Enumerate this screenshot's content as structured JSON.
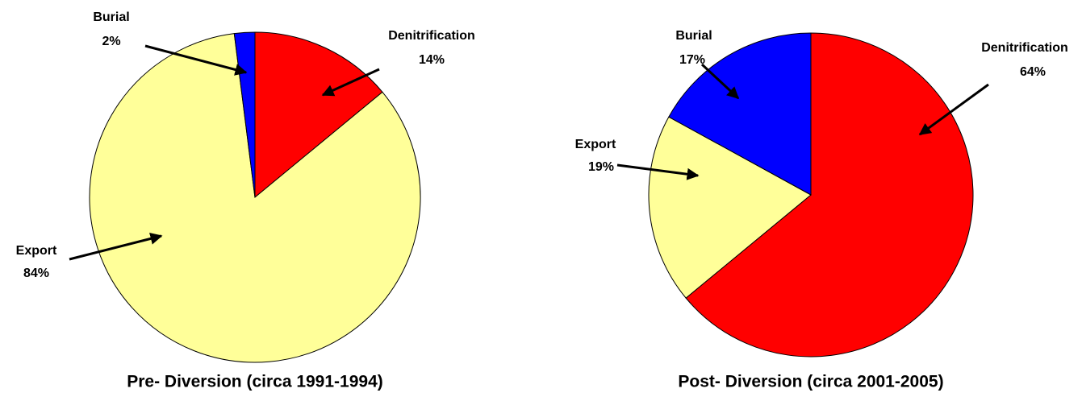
{
  "chart_data": [
    {
      "type": "pie",
      "title": "Pre- Diversion (circa 1991-1994)",
      "categories": [
        "Denitrification",
        "Export",
        "Burial"
      ],
      "values": [
        14,
        84,
        2
      ],
      "value_labels": [
        "14%",
        "84%",
        "2%"
      ],
      "colors": [
        "#ff0000",
        "#ffff99",
        "#0000ff"
      ]
    },
    {
      "type": "pie",
      "title": "Post- Diversion (circa 2001-2005)",
      "categories": [
        "Denitrification",
        "Export",
        "Burial"
      ],
      "values": [
        64,
        19,
        17
      ],
      "value_labels": [
        "64%",
        "19%",
        "17%"
      ],
      "colors": [
        "#ff0000",
        "#ffff99",
        "#0000ff"
      ]
    }
  ]
}
